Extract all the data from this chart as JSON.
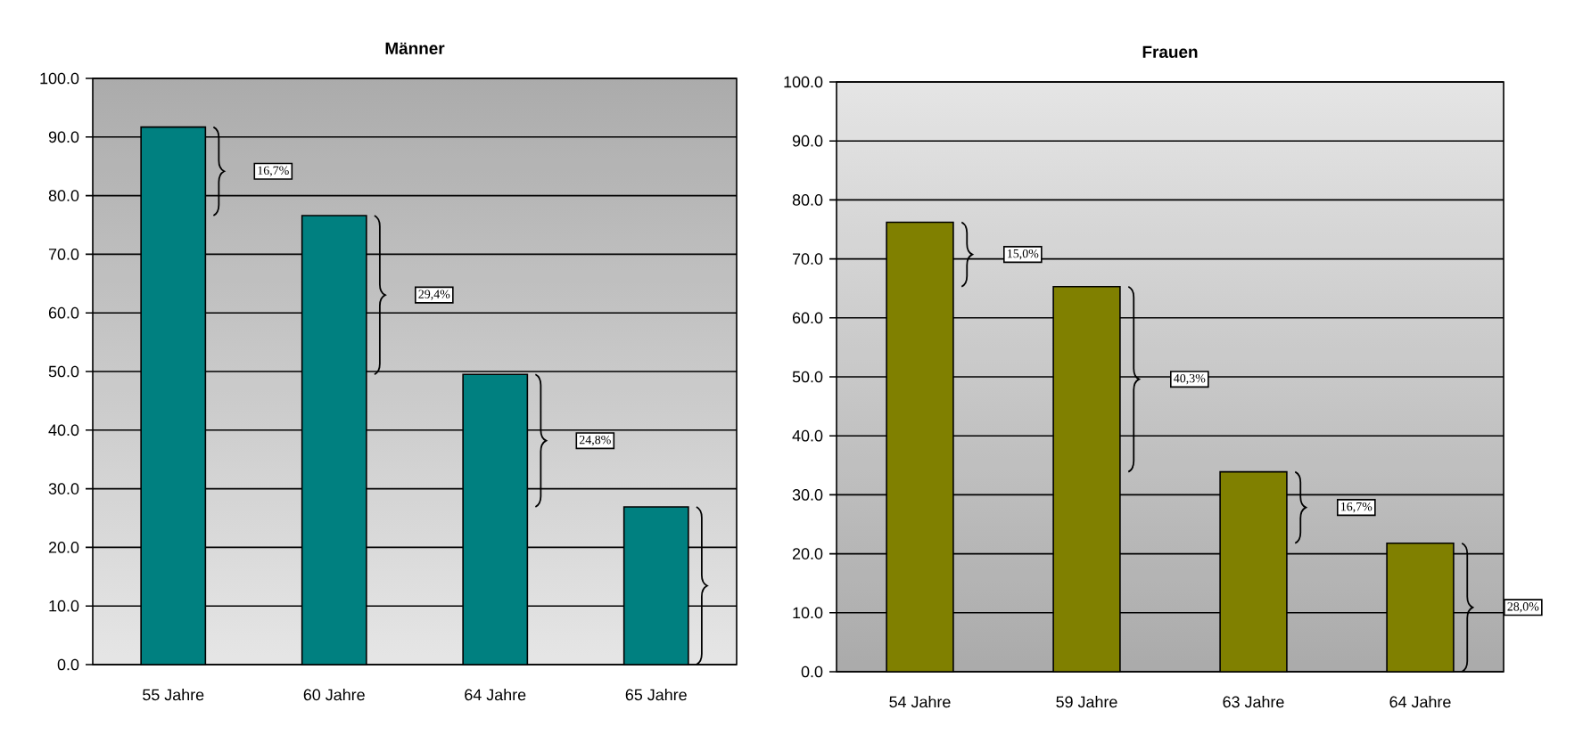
{
  "chart_data": [
    {
      "type": "bar",
      "title": "Männer",
      "categories": [
        "55 Jahre",
        "60 Jahre",
        "64 Jahre",
        "65 Jahre"
      ],
      "values": [
        91.7,
        76.6,
        49.5,
        26.9
      ],
      "color": "#008080",
      "ylim": [
        0,
        100
      ],
      "yticks": [
        {
          "value": 0,
          "label": "0.0"
        },
        {
          "value": 10,
          "label": "10.0"
        },
        {
          "value": 20,
          "label": "20.0"
        },
        {
          "value": 30,
          "label": "30.0"
        },
        {
          "value": 40,
          "label": "40.0"
        },
        {
          "value": 50,
          "label": "50.0"
        },
        {
          "value": 60,
          "label": "60.0"
        },
        {
          "value": 70,
          "label": "70.0"
        },
        {
          "value": 80,
          "label": "80.0"
        },
        {
          "value": 90,
          "label": "90.0"
        },
        {
          "value": 100,
          "label": "100.0"
        }
      ],
      "grid": "y",
      "annotations": [
        "16,7%",
        "29,4%",
        "24,8%"
      ]
    },
    {
      "type": "bar",
      "title": "Frauen",
      "categories": [
        "54 Jahre",
        "59 Jahre",
        "63 Jahre",
        "64 Jahre"
      ],
      "values": [
        76.2,
        65.3,
        33.9,
        21.8
      ],
      "color": "#808000",
      "ylim": [
        0,
        100
      ],
      "yticks": [
        {
          "value": 0,
          "label": "0.0"
        },
        {
          "value": 10,
          "label": "10.0"
        },
        {
          "value": 20,
          "label": "20.0"
        },
        {
          "value": 30,
          "label": "30.0"
        },
        {
          "value": 40,
          "label": "40.0"
        },
        {
          "value": 50,
          "label": "50.0"
        },
        {
          "value": 60,
          "label": "60.0"
        },
        {
          "value": 70,
          "label": "70.0"
        },
        {
          "value": 80,
          "label": "80.0"
        },
        {
          "value": 90,
          "label": "90.0"
        },
        {
          "value": 100,
          "label": "100.0"
        }
      ],
      "grid": "y",
      "annotations": [
        "15,0%",
        "40,3%",
        "16,7%",
        "28,0%"
      ]
    }
  ]
}
